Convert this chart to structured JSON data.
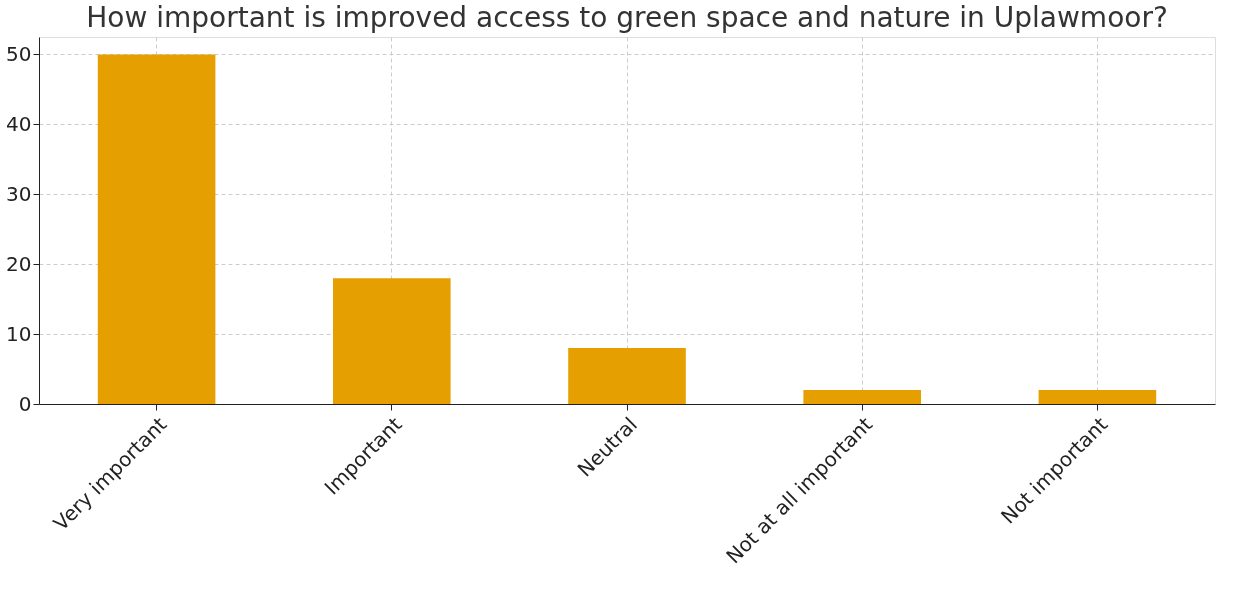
{
  "chart_data": {
    "type": "bar",
    "title": "How important is improved access to green space and nature in Uplawmoor?",
    "categories": [
      "Very important",
      "Important",
      "Neutral",
      "Not at all important",
      "Not important"
    ],
    "values": [
      50,
      18,
      8,
      2,
      2
    ],
    "color": "#e69f00",
    "ylim": [
      0,
      52.5
    ],
    "yticks": [
      0,
      10,
      20,
      30,
      40,
      50
    ],
    "grid": true
  }
}
